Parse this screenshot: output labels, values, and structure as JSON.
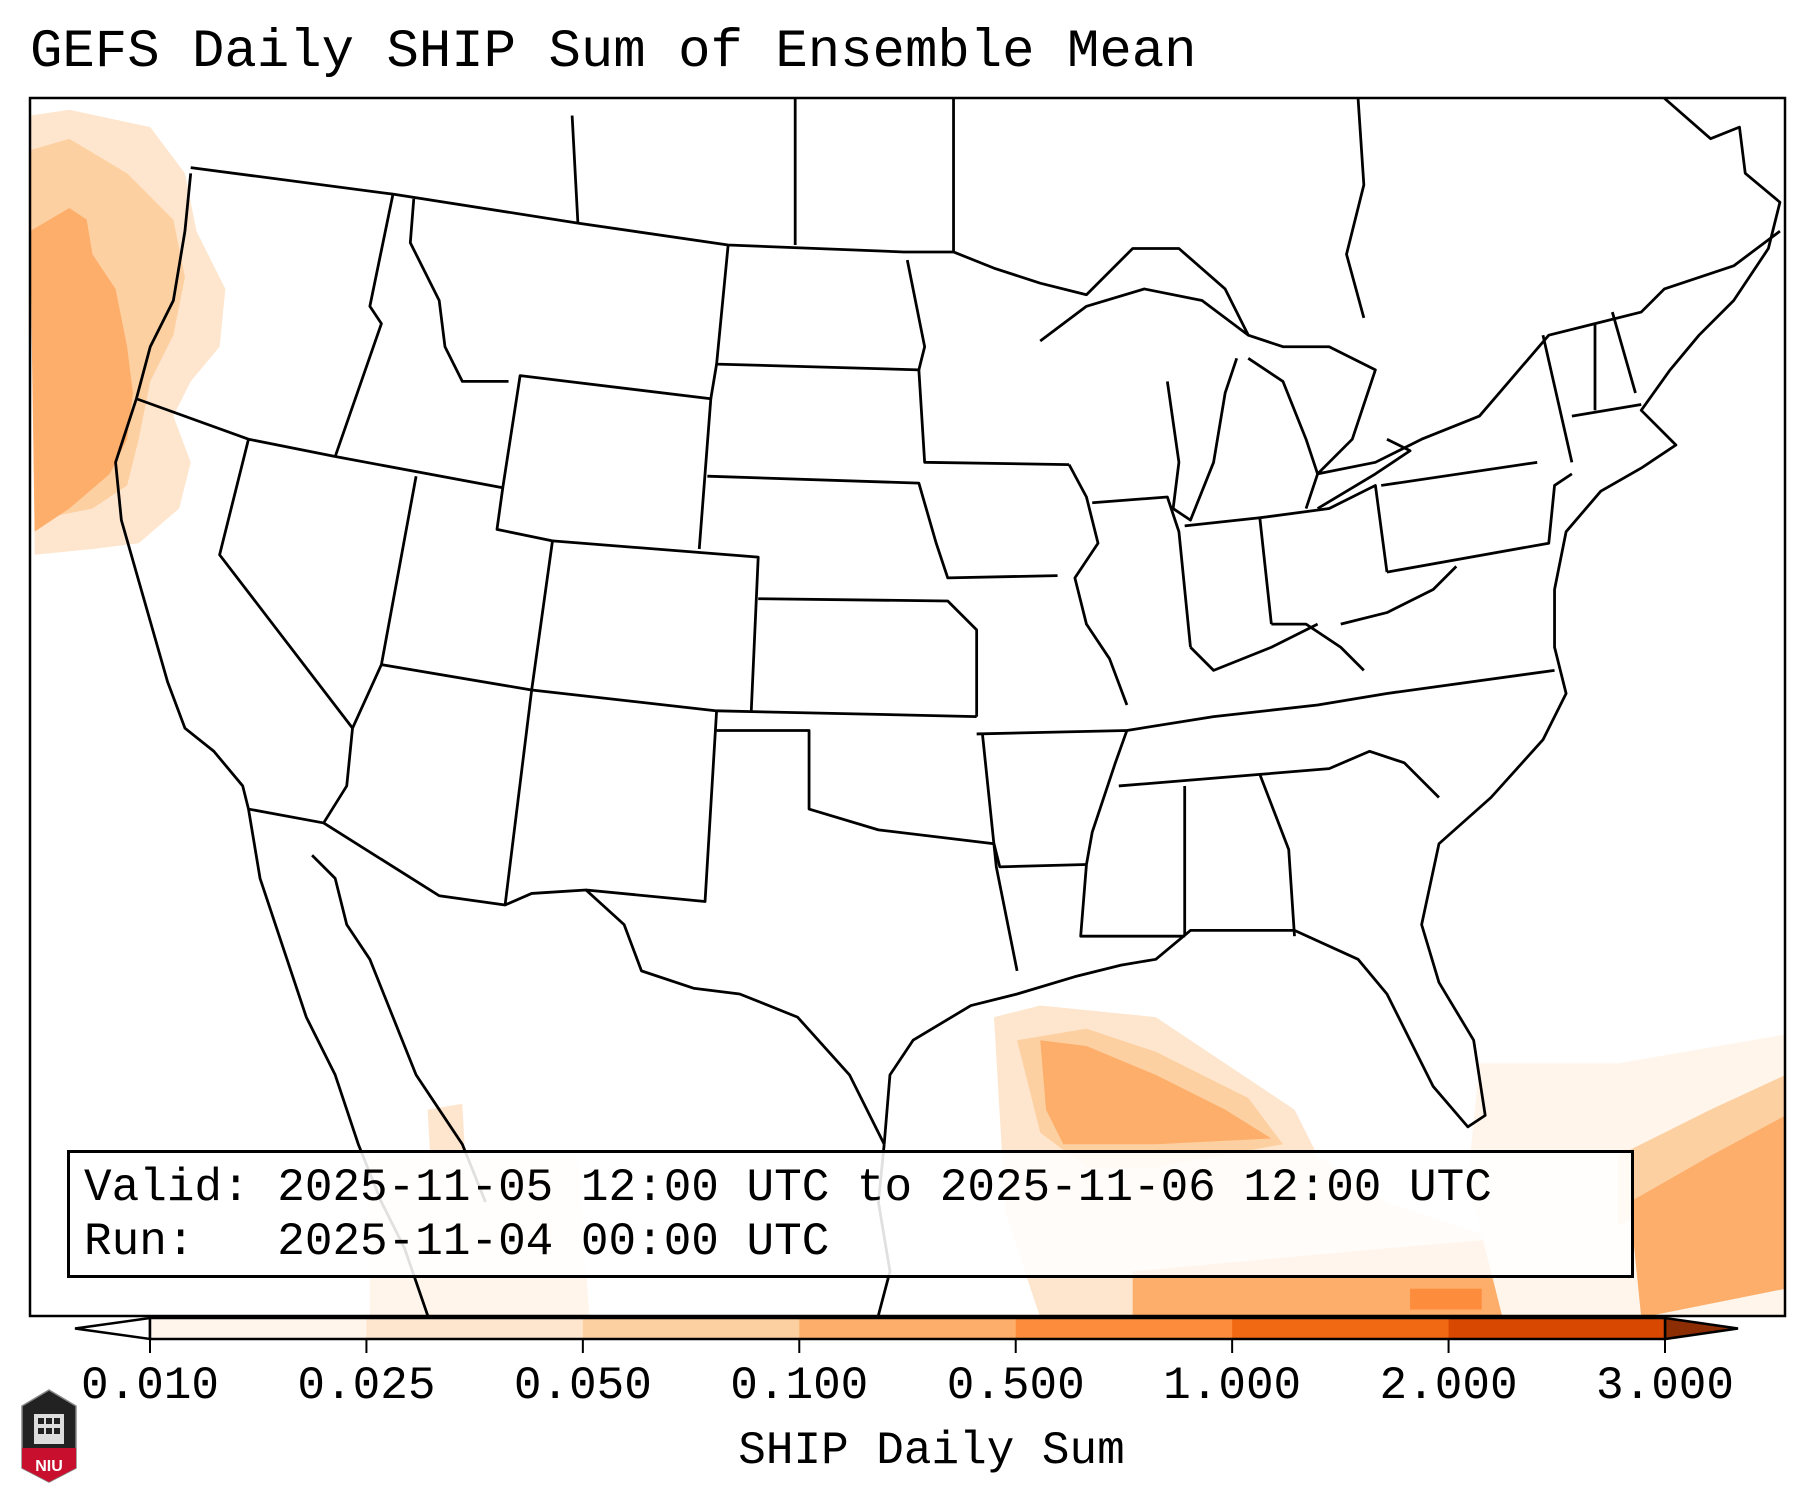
{
  "title": "GEFS Daily SHIP Sum of Ensemble Mean",
  "info": {
    "valid_line": "Valid: 2025-11-05 12:00 UTC to 2025-11-06 12:00 UTC",
    "run_line": "Run:   2025-11-04 00:00 UTC"
  },
  "colorbar": {
    "label": "SHIP Daily Sum",
    "ticks": [
      "0.010",
      "0.025",
      "0.050",
      "0.100",
      "0.500",
      "1.000",
      "2.000",
      "3.000"
    ],
    "colors": [
      "#fff5eb",
      "#fee6ce",
      "#fdd0a2",
      "#fdae6b",
      "#fd8d3c",
      "#f16913",
      "#d94801"
    ],
    "under_color": "#ffffff",
    "over_color": "#8c2d04"
  },
  "logo": {
    "text": "NIU"
  }
}
